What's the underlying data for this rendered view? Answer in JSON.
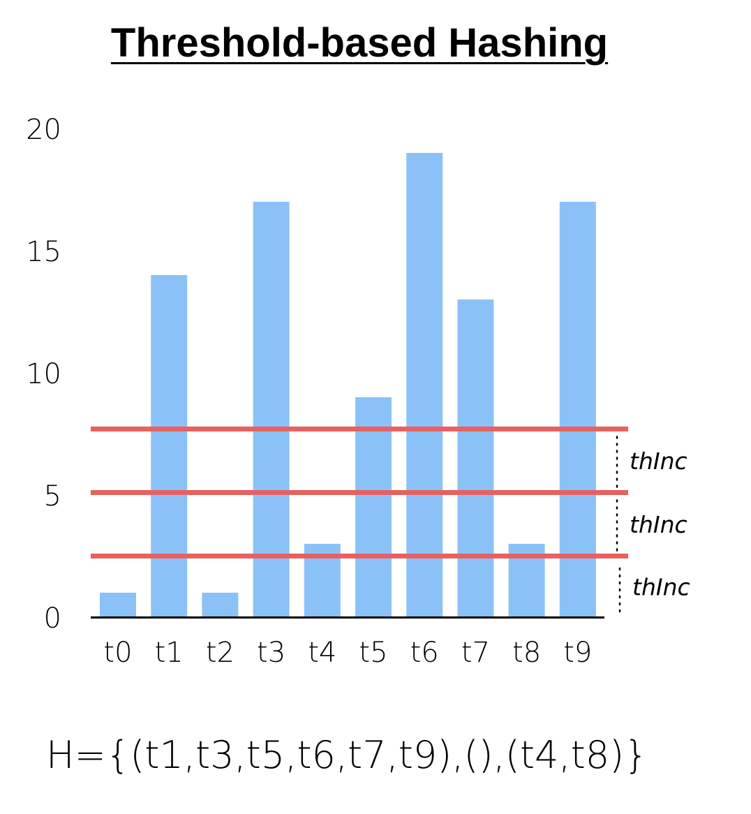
{
  "chart_data": {
    "type": "bar",
    "title": "Threshold-based Hashing",
    "categories": [
      "t0",
      "t1",
      "t2",
      "t3",
      "t4",
      "t5",
      "t6",
      "t7",
      "t8",
      "t9"
    ],
    "values": [
      1,
      14,
      1,
      17,
      3,
      9,
      19,
      13,
      3,
      17
    ],
    "ylim": [
      0,
      20
    ],
    "yticks": [
      0,
      5,
      10,
      15,
      20
    ],
    "xlabel": "",
    "ylabel": "",
    "grid": false,
    "bar_color": "#8AC2F7",
    "thresholds": [
      2.5,
      5.1,
      7.7
    ],
    "threshold_color": "#E86060",
    "threshold_gap_label": "thInc"
  },
  "formula": "H={(t1,t3,t5,t6,t7,t9),(),(t4,t8)}"
}
